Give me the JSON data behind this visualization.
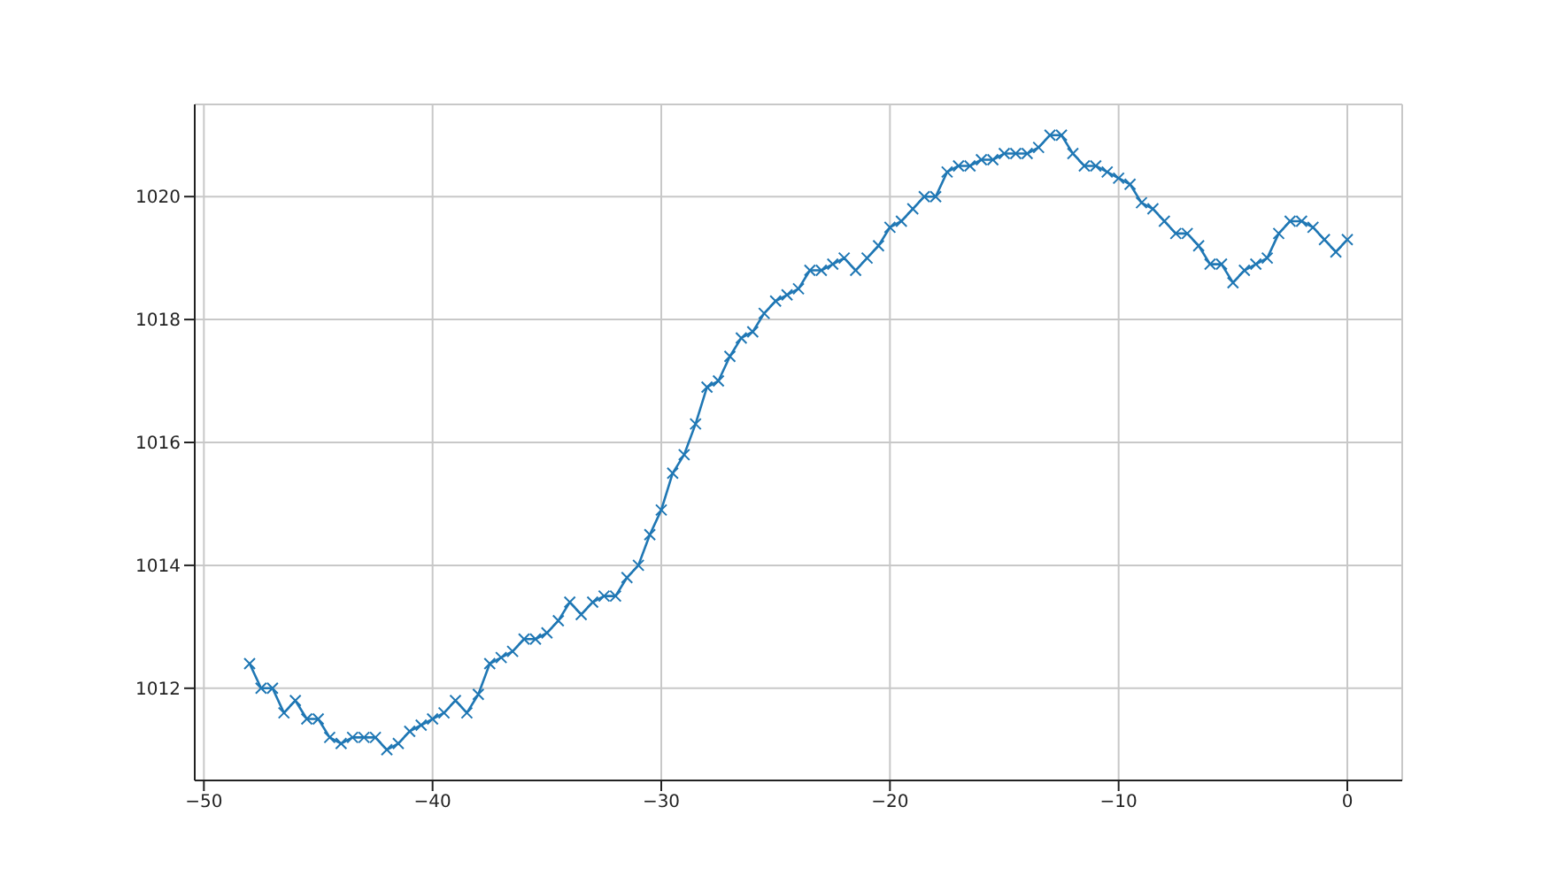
{
  "chart_data": {
    "type": "line",
    "marker": "cross",
    "grid": true,
    "x": [
      -48,
      -47.5,
      -47,
      -46.5,
      -46,
      -45.5,
      -45,
      -44.5,
      -44,
      -43.5,
      -43,
      -42.5,
      -42,
      -41.5,
      -41,
      -40.5,
      -40,
      -39.5,
      -39,
      -38.5,
      -38,
      -37.5,
      -37,
      -36.5,
      -36,
      -35.5,
      -35,
      -34.5,
      -34,
      -33.5,
      -33,
      -32.5,
      -32,
      -31.5,
      -31,
      -30.5,
      -30,
      -29.5,
      -29,
      -28.5,
      -28,
      -27.5,
      -27,
      -26.5,
      -26,
      -25.5,
      -25,
      -24.5,
      -24,
      -23.5,
      -23,
      -22.5,
      -22,
      -21.5,
      -21,
      -20.5,
      -20,
      -19.5,
      -19,
      -18.5,
      -18,
      -17.5,
      -17,
      -16.5,
      -16,
      -15.5,
      -15,
      -14.5,
      -14,
      -13.5,
      -13,
      -12.5,
      -12,
      -11.5,
      -11,
      -10.5,
      -10,
      -9.5,
      -9,
      -8.5,
      -8,
      -7.5,
      -7,
      -6.5,
      -6,
      -5.5,
      -5,
      -4.5,
      -4,
      -3.5,
      -3,
      -2.5,
      -2,
      -1.5,
      -1,
      -0.5,
      0
    ],
    "series": [
      {
        "color": "#1f77b4",
        "values": [
          1012.4,
          1012.0,
          1012.0,
          1011.6,
          1011.8,
          1011.5,
          1011.5,
          1011.2,
          1011.1,
          1011.2,
          1011.2,
          1011.2,
          1011.0,
          1011.1,
          1011.3,
          1011.4,
          1011.5,
          1011.6,
          1011.8,
          1011.6,
          1011.9,
          1012.4,
          1012.5,
          1012.6,
          1012.8,
          1012.8,
          1012.9,
          1013.1,
          1013.4,
          1013.2,
          1013.4,
          1013.5,
          1013.5,
          1013.8,
          1014.0,
          1014.5,
          1014.9,
          1015.5,
          1015.8,
          1016.3,
          1016.9,
          1017.0,
          1017.4,
          1017.7,
          1017.8,
          1018.1,
          1018.3,
          1018.4,
          1018.5,
          1018.8,
          1018.8,
          1018.9,
          1019.0,
          1018.8,
          1019.0,
          1019.2,
          1019.5,
          1019.6,
          1019.8,
          1020.0,
          1020.0,
          1020.4,
          1020.5,
          1020.5,
          1020.6,
          1020.6,
          1020.7,
          1020.7,
          1020.7,
          1020.8,
          1021.0,
          1021.0,
          1020.7,
          1020.5,
          1020.5,
          1020.4,
          1020.3,
          1020.2,
          1019.9,
          1019.8,
          1019.6,
          1019.4,
          1019.4,
          1019.2,
          1018.9,
          1018.9,
          1018.6,
          1018.8,
          1018.9,
          1019.0,
          1019.4,
          1019.6,
          1019.6,
          1019.5,
          1019.3,
          1019.1,
          1019.3
        ]
      }
    ],
    "xlim": [
      -50.4,
      2.4
    ],
    "xticks": [
      -50,
      -40,
      -30,
      -20,
      -10,
      0
    ],
    "ylim": [
      1010.5,
      1021.5
    ],
    "yticks": [
      1012,
      1014,
      1016,
      1018,
      1020
    ]
  }
}
